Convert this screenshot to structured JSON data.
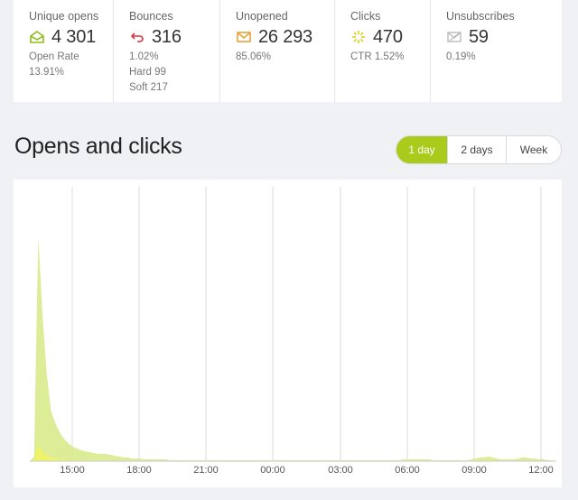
{
  "stats": [
    {
      "label": "Unique opens",
      "icon": "open-envelope-icon",
      "value": "4 301",
      "sub": [
        "Open Rate",
        "13.91%"
      ]
    },
    {
      "label": "Bounces",
      "icon": "bounce-arrow-icon",
      "value": "316",
      "sub": [
        "1.02%",
        "Hard 99",
        "Soft 217"
      ]
    },
    {
      "label": "Unopened",
      "icon": "envelope-icon",
      "value": "26 293",
      "sub": [
        "85.06%"
      ]
    },
    {
      "label": "Clicks",
      "icon": "click-burst-icon",
      "value": "470",
      "sub": [
        "CTR 1.52%"
      ]
    },
    {
      "label": "Unsubscribes",
      "icon": "unsubscribe-envelope-icon",
      "value": "59",
      "sub": [
        "0.19%"
      ]
    }
  ],
  "section": {
    "title": "Opens and clicks"
  },
  "range": {
    "options": [
      "1 day",
      "2 days",
      "Week"
    ],
    "selected": "1 day"
  },
  "colors": {
    "opens_fill": "#d8ea8c",
    "clicks_fill": "#eef36a",
    "accent": "#a9cc1c",
    "bounce": "#d9343a",
    "unopened": "#e8a33a"
  },
  "chart_data": {
    "type": "area",
    "xlabels": [
      "15:00",
      "18:00",
      "21:00",
      "00:00",
      "03:00",
      "06:00",
      "09:00",
      "12:00"
    ],
    "series": [
      {
        "values": [
          0,
          5,
          245,
          160,
          95,
          55,
          42,
          32,
          25,
          20,
          16,
          14,
          12,
          11,
          10,
          9,
          8,
          8,
          8,
          7,
          6,
          5,
          4,
          4,
          3,
          3,
          3,
          2,
          2,
          2,
          2,
          2,
          2,
          1,
          1,
          1,
          1,
          1,
          1,
          1,
          1,
          1,
          1,
          1,
          1,
          1,
          1,
          1,
          1,
          1,
          1,
          1,
          1,
          1,
          1,
          1,
          1,
          1,
          1,
          1,
          1,
          1,
          1,
          1,
          1,
          1,
          1,
          1,
          1,
          1,
          1,
          1,
          1,
          1,
          1,
          1,
          1,
          1,
          1,
          1,
          1,
          1,
          1,
          1,
          1,
          1,
          1,
          1,
          2,
          2,
          2,
          2,
          2,
          2,
          2,
          1,
          1,
          1,
          1,
          1,
          1,
          1,
          1,
          1,
          2,
          3,
          4,
          4,
          5,
          4,
          3,
          2,
          2,
          2,
          2,
          3,
          4,
          4,
          3,
          3,
          2,
          2,
          1,
          1,
          0
        ]
      },
      {
        "values": [
          0,
          2,
          18,
          10,
          6,
          4,
          3,
          2,
          2,
          1,
          1,
          1,
          1,
          1,
          1,
          1,
          0,
          0,
          0,
          0,
          0,
          0,
          0,
          0,
          0,
          0,
          0,
          0,
          0,
          0,
          0,
          0,
          0,
          0,
          0,
          0,
          0,
          0,
          0,
          0,
          0,
          0,
          0,
          0,
          0,
          0,
          0,
          0,
          0,
          0,
          0,
          0,
          0,
          0,
          0,
          0,
          0,
          0,
          0,
          0,
          0,
          0,
          0,
          0,
          0,
          0,
          0,
          0,
          0,
          0,
          0,
          0,
          0,
          0,
          0,
          0,
          0,
          0,
          0,
          0,
          0,
          0,
          0,
          0,
          0,
          0,
          0,
          0,
          0,
          0,
          0,
          0,
          0,
          0,
          0,
          0,
          0,
          0,
          0,
          0,
          0,
          0,
          0,
          0,
          0,
          1,
          1,
          1,
          1,
          1,
          0,
          0,
          0,
          0,
          0,
          0,
          0,
          0,
          0,
          0,
          0,
          0,
          0,
          0,
          0
        ]
      }
    ],
    "ymax": 300
  }
}
